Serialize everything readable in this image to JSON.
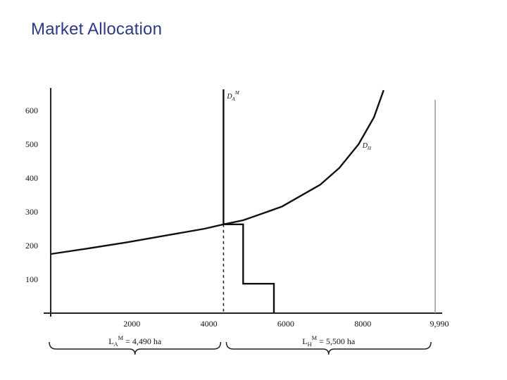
{
  "slide": {
    "title": "Market Allocation"
  },
  "chart_data": {
    "type": "line",
    "title": "Market Allocation",
    "xlim": [
      0,
      9990
    ],
    "ylim": [
      0,
      600
    ],
    "x_ticks": [
      {
        "value": 2000,
        "label": "2000"
      },
      {
        "value": 4000,
        "label": "4000"
      },
      {
        "value": 6000,
        "label": "6000"
      },
      {
        "value": 8000,
        "label": "8000"
      },
      {
        "value": 9990,
        "label": "9,990"
      }
    ],
    "y_ticks": [
      {
        "value": 100,
        "label": "100"
      },
      {
        "value": 200,
        "label": "200"
      },
      {
        "value": 300,
        "label": "300"
      },
      {
        "value": 400,
        "label": "400"
      },
      {
        "value": 500,
        "label": "500"
      },
      {
        "value": 600,
        "label": "600"
      }
    ],
    "series": [
      {
        "name": "DHM",
        "label_main": "D",
        "label_sub": "H",
        "label_sup": "",
        "label_at": {
          "x": 8100,
          "y": 490
        },
        "points": [
          {
            "x": 0,
            "y": 175
          },
          {
            "x": 1000,
            "y": 192
          },
          {
            "x": 2000,
            "y": 210
          },
          {
            "x": 3000,
            "y": 230
          },
          {
            "x": 4000,
            "y": 250
          },
          {
            "x": 4490,
            "y": 263
          },
          {
            "x": 5000,
            "y": 275
          },
          {
            "x": 6000,
            "y": 315
          },
          {
            "x": 7000,
            "y": 380
          },
          {
            "x": 7500,
            "y": 430
          },
          {
            "x": 8000,
            "y": 500
          },
          {
            "x": 8400,
            "y": 580
          },
          {
            "x": 8650,
            "y": 660
          }
        ]
      },
      {
        "name": "DAM",
        "label_main": "D",
        "label_sub": "A",
        "label_sup": "M",
        "label_at": {
          "x": 4580,
          "y": 640
        },
        "points": [
          {
            "x": 4490,
            "y": 700
          },
          {
            "x": 4490,
            "y": 263
          },
          {
            "x": 5000,
            "y": 263
          },
          {
            "x": 5000,
            "y": 87
          },
          {
            "x": 5800,
            "y": 87
          },
          {
            "x": 5800,
            "y": 0
          }
        ]
      }
    ],
    "allocation_line": {
      "x": 4490
    },
    "right_boundary": {
      "x": 9990
    },
    "annotations": [
      {
        "main": "L",
        "sub": "A",
        "sup": "M",
        "value": " = 4,490 ha",
        "x_from": 0,
        "x_to": 4490
      },
      {
        "main": "L",
        "sub": "H",
        "sup": "M",
        "value": " = 5,500 ha",
        "x_from": 4490,
        "x_to": 9990
      }
    ]
  }
}
